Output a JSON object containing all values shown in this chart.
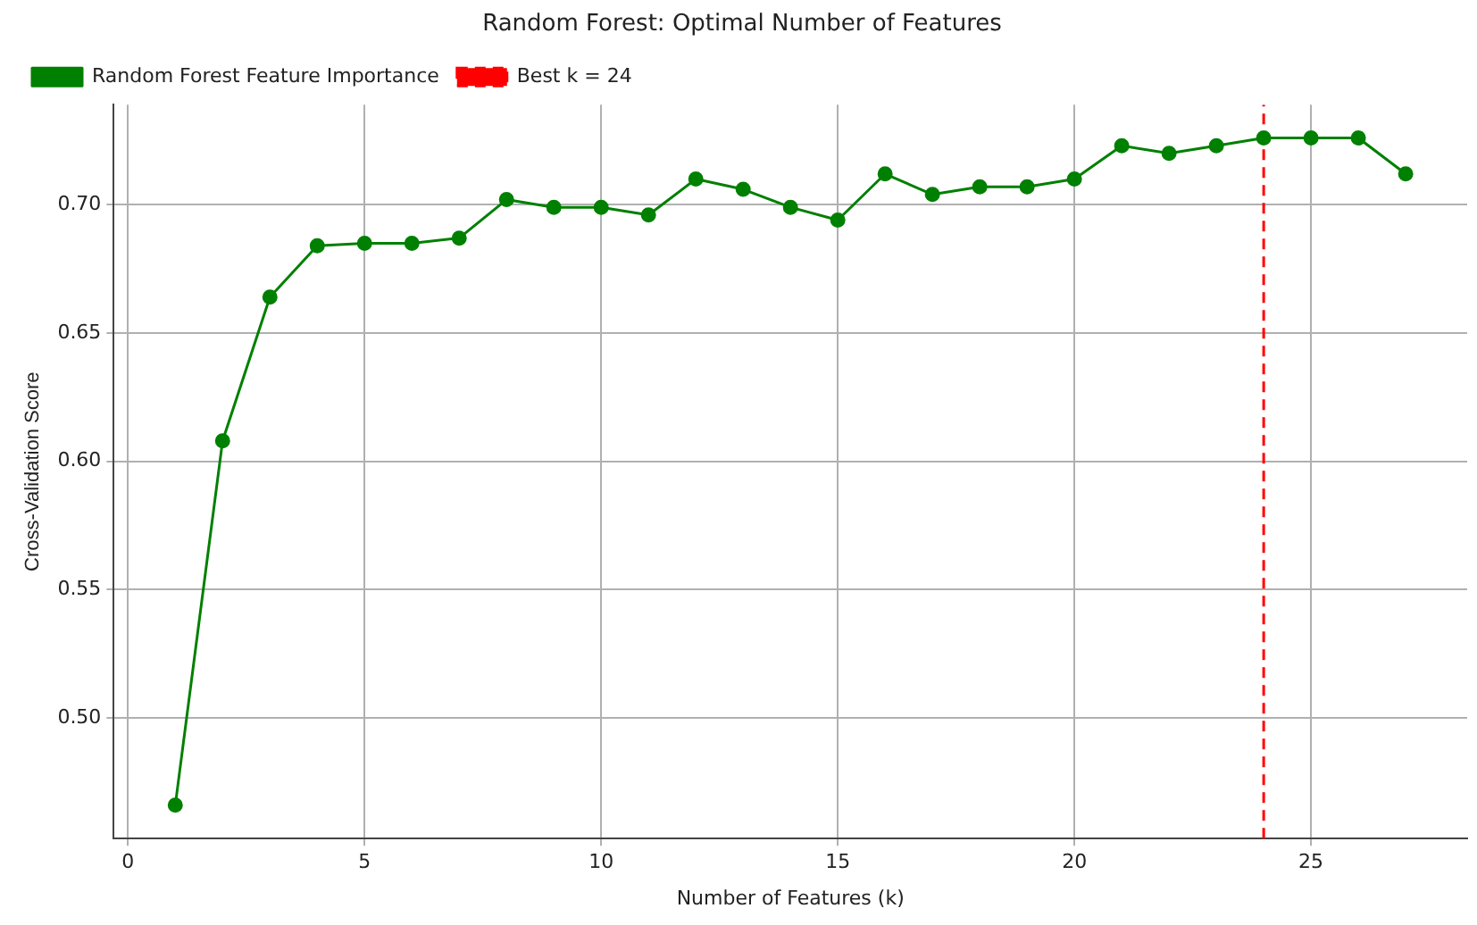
{
  "chart_data": {
    "type": "line",
    "title": "Random Forest: Optimal Number of Features",
    "xlabel": "Number of Features (k)",
    "ylabel": "Cross-Validation Score",
    "x": [
      1,
      2,
      3,
      4,
      5,
      6,
      7,
      8,
      9,
      10,
      11,
      12,
      13,
      14,
      15,
      16,
      17,
      18,
      19,
      20,
      21,
      22,
      23,
      24,
      25,
      26,
      27
    ],
    "series": [
      {
        "name": "Random Forest Feature Importance",
        "color": "#008000",
        "values": [
          0.466,
          0.608,
          0.664,
          0.684,
          0.685,
          0.685,
          0.687,
          0.702,
          0.699,
          0.699,
          0.696,
          0.71,
          0.706,
          0.699,
          0.694,
          0.712,
          0.704,
          0.707,
          0.707,
          0.71,
          0.723,
          0.72,
          0.723,
          0.726,
          0.726,
          0.726,
          0.712
        ]
      }
    ],
    "xlim": [
      -0.3,
      28.3
    ],
    "xticks": [
      0,
      5,
      10,
      15,
      20,
      25
    ],
    "ylim": [
      0.453,
      0.739
    ],
    "yticks": [
      {
        "value": 0.5,
        "label": "0.50"
      },
      {
        "value": 0.55,
        "label": "0.55"
      },
      {
        "value": 0.6,
        "label": "0.60"
      },
      {
        "value": 0.65,
        "label": "0.65"
      },
      {
        "value": 0.7,
        "label": "0.70"
      }
    ],
    "ref_lines": [
      {
        "axis": "x",
        "value": 24,
        "label": "Best k = 24",
        "color": "#ff0000",
        "line_style": "dashed"
      }
    ],
    "grid": true,
    "legend": "top left",
    "marker": "circle",
    "line_style": "solid"
  }
}
